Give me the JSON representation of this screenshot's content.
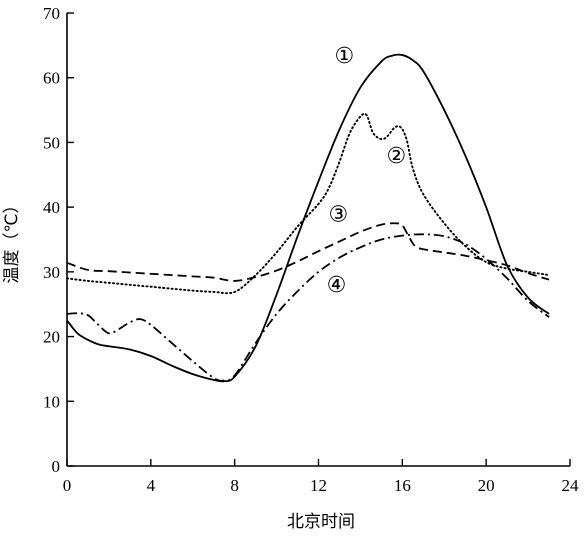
{
  "chart_data": {
    "type": "line",
    "title": "",
    "xlabel": "北京时间",
    "ylabel": "温度（℃）",
    "xlim": [
      0,
      24
    ],
    "ylim": [
      0,
      70
    ],
    "xticks": [
      0,
      4,
      8,
      12,
      16,
      20,
      24
    ],
    "yticks": [
      0,
      10,
      20,
      30,
      40,
      50,
      60,
      70
    ],
    "grid": false,
    "series": [
      {
        "name": "①",
        "color": "#000000",
        "style": "solid",
        "x": [
          0,
          0.5,
          1,
          1.5,
          2,
          3,
          4,
          5,
          6,
          7,
          7.5,
          8,
          9,
          10,
          11,
          12,
          13,
          14,
          15,
          15.5,
          16,
          16.5,
          17,
          18,
          19,
          20,
          21,
          22,
          23
        ],
        "y": [
          22.5,
          20.5,
          19.5,
          18.8,
          18.5,
          18,
          17,
          15.5,
          14.2,
          13.3,
          13.1,
          13.8,
          18.5,
          26.5,
          35.5,
          44,
          52,
          58.5,
          62.5,
          63.4,
          63.5,
          62.7,
          61,
          55,
          48,
          40,
          31,
          26,
          23.5
        ]
      },
      {
        "name": "②",
        "color": "#000000",
        "style": "dotted",
        "x": [
          0,
          1,
          2,
          3,
          4,
          5,
          6,
          7,
          8,
          9,
          10,
          11,
          12,
          12.5,
          13,
          13.5,
          14,
          14.3,
          14.6,
          15,
          15.3,
          15.6,
          15.9,
          16.2,
          16.5,
          17,
          18,
          19,
          20,
          21,
          22,
          23
        ],
        "y": [
          29,
          28.6,
          28.3,
          28,
          27.7,
          27.4,
          27.1,
          26.9,
          26.9,
          29.5,
          33,
          37,
          40.5,
          43,
          47,
          51.5,
          54,
          54.2,
          51.5,
          50.5,
          51,
          52.2,
          52.4,
          50.5,
          46,
          42,
          37.5,
          34,
          31.5,
          30.5,
          30,
          29.5
        ]
      },
      {
        "name": "③",
        "color": "#000000",
        "style": "dashed",
        "x": [
          0,
          1,
          2,
          3,
          4,
          5,
          6,
          7,
          8,
          9,
          10,
          11,
          12,
          13,
          14,
          15,
          15.7,
          16,
          16.3,
          16.6,
          17,
          18,
          19,
          20,
          21,
          22,
          23
        ],
        "y": [
          31.4,
          30.3,
          30.1,
          29.9,
          29.7,
          29.5,
          29.3,
          29.1,
          28.6,
          29.2,
          30.2,
          31.6,
          33.2,
          34.7,
          36.2,
          37.3,
          37.5,
          37.2,
          35.5,
          34,
          33.5,
          33,
          32.5,
          31.8,
          31,
          29.8,
          28.8
        ]
      },
      {
        "name": "④",
        "color": "#000000",
        "style": "dashdot",
        "x": [
          0,
          0.5,
          1,
          1.5,
          2,
          2.5,
          3,
          3.5,
          4,
          5,
          6,
          7,
          7.5,
          8,
          9,
          10,
          11,
          12,
          13,
          14,
          15,
          16,
          17,
          18,
          19,
          20,
          21,
          22,
          23
        ],
        "y": [
          23.5,
          23.6,
          23.3,
          21.8,
          20.5,
          21.2,
          22.2,
          22.7,
          21.8,
          19,
          16.2,
          13.6,
          13.2,
          14,
          19,
          23.5,
          27,
          30,
          32.2,
          33.8,
          35,
          35.6,
          35.8,
          35.5,
          34.3,
          32,
          29,
          25.5,
          23
        ]
      }
    ]
  },
  "series_labels": [
    {
      "text": "①",
      "x": 16,
      "y": 63.5,
      "dx": -58,
      "dy": 8
    },
    {
      "text": "②",
      "x": 16,
      "y": 49,
      "dx": -6,
      "dy": 14
    },
    {
      "text": "③",
      "x": 14,
      "y": 36.2,
      "dx": -22,
      "dy": -10
    },
    {
      "text": "④",
      "x": 12,
      "y": 30,
      "dx": 18,
      "dy": 20
    }
  ]
}
